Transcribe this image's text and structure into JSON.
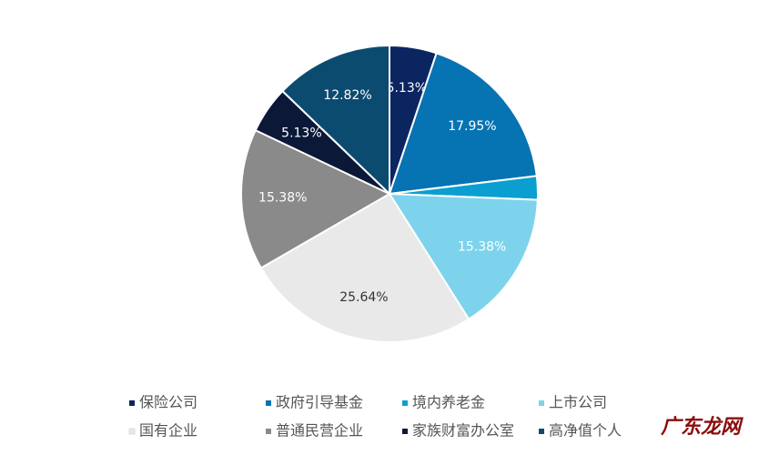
{
  "chart_data": {
    "type": "pie",
    "categories": [
      "保险公司",
      "政府引导基金",
      "境内养老金",
      "上市公司",
      "国有企业",
      "普通民营企业",
      "家族财富办公室",
      "高净值个人"
    ],
    "values": [
      5.13,
      17.95,
      2.56,
      15.38,
      25.64,
      15.38,
      5.13,
      12.82
    ],
    "value_labels": [
      "5.13%",
      "17.95%",
      null,
      "15.38%",
      "25.64%",
      "15.38%",
      "5.13%",
      "12.82%"
    ],
    "colors": [
      "#0b2561",
      "#0673b3",
      "#0a9fd0",
      "#7dd3ec",
      "#e9e9e9",
      "#8a8a8a",
      "#0b1838",
      "#0b4b70"
    ],
    "label_colors": [
      "#ffffff",
      "#ffffff",
      "#ffffff",
      "#ffffff",
      "#333333",
      "#ffffff",
      "#ffffff",
      "#ffffff"
    ],
    "legend": "bottom",
    "watermark": "广东龙网"
  }
}
